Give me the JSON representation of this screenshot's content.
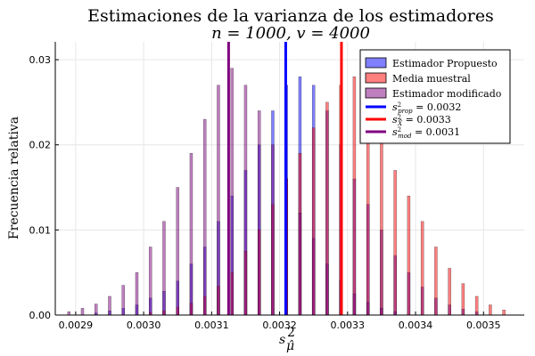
{
  "chart_data": {
    "type": "bar",
    "title": "Estimaciones de la varianza de los estimadores",
    "subtitle": "n = 1000, v = 4000",
    "xlabel": "s²_μ̂",
    "ylabel": "Frecuencia relativa",
    "xlim": [
      0.00287,
      0.00356
    ],
    "ylim": [
      0,
      0.0321
    ],
    "xticks": [
      0.0029,
      0.003,
      0.0031,
      0.0032,
      0.0033,
      0.0034,
      0.0035
    ],
    "xtick_labels": [
      "0.0029",
      "0.0030",
      "0.0031",
      "0.0032",
      "0.0033",
      "0.0034",
      "0.0035"
    ],
    "yticks": [
      0,
      0.01,
      0.02,
      0.03
    ],
    "ytick_labels": [
      "0.00",
      "0.01",
      "0.02",
      "0.03"
    ],
    "grid": true,
    "legend_position": "top-right",
    "bin_width": 4e-06,
    "series": [
      {
        "name": "Estimador Propuesto",
        "color": "#0000ff",
        "opacity": 0.5,
        "bins": [
          [
            0.00293,
            0.00025
          ],
          [
            0.00295,
            0.0005
          ],
          [
            0.00297,
            0.0008
          ],
          [
            0.00299,
            0.0012
          ],
          [
            0.00301,
            0.002
          ],
          [
            0.00303,
            0.0028
          ],
          [
            0.00305,
            0.004
          ],
          [
            0.00307,
            0.006
          ],
          [
            0.00309,
            0.008
          ],
          [
            0.00311,
            0.011
          ],
          [
            0.00313,
            0.014
          ],
          [
            0.00315,
            0.017
          ],
          [
            0.00317,
            0.02
          ],
          [
            0.00319,
            0.024
          ],
          [
            0.00321,
            0.027
          ],
          [
            0.00323,
            0.028
          ],
          [
            0.00325,
            0.027
          ],
          [
            0.00327,
            0.024
          ],
          [
            0.00329,
            0.02
          ],
          [
            0.00331,
            0.016
          ],
          [
            0.00333,
            0.013
          ],
          [
            0.00335,
            0.01
          ],
          [
            0.00337,
            0.007
          ],
          [
            0.00339,
            0.005
          ],
          [
            0.00341,
            0.0033
          ],
          [
            0.00343,
            0.002
          ],
          [
            0.00345,
            0.0012
          ],
          [
            0.00347,
            0.0007
          ],
          [
            0.00349,
            0.0004
          ]
        ]
      },
      {
        "name": "Media muestral",
        "color": "#ff0000",
        "opacity": 0.5,
        "bins": [
          [
            0.00301,
            0.0003
          ],
          [
            0.00303,
            0.0005
          ],
          [
            0.00305,
            0.0009
          ],
          [
            0.00307,
            0.0014
          ],
          [
            0.00309,
            0.0022
          ],
          [
            0.00311,
            0.0034
          ],
          [
            0.00313,
            0.005
          ],
          [
            0.00315,
            0.0075
          ],
          [
            0.00317,
            0.01
          ],
          [
            0.00319,
            0.013
          ],
          [
            0.00321,
            0.016
          ],
          [
            0.00323,
            0.019
          ],
          [
            0.00325,
            0.022
          ],
          [
            0.00327,
            0.025
          ],
          [
            0.00329,
            0.027
          ],
          [
            0.00331,
            0.028
          ],
          [
            0.00333,
            0.025
          ],
          [
            0.00335,
            0.021
          ],
          [
            0.00337,
            0.017
          ],
          [
            0.00339,
            0.014
          ],
          [
            0.00341,
            0.011
          ],
          [
            0.00343,
            0.008
          ],
          [
            0.00345,
            0.0055
          ],
          [
            0.00347,
            0.0037
          ],
          [
            0.00349,
            0.0022
          ],
          [
            0.00351,
            0.0012
          ],
          [
            0.00353,
            0.0006
          ]
        ]
      },
      {
        "name": "Estimador modificado",
        "color": "#800080",
        "opacity": 0.5,
        "bins": [
          [
            0.00289,
            0.0004
          ],
          [
            0.00291,
            0.0008
          ],
          [
            0.00293,
            0.0013
          ],
          [
            0.00295,
            0.0022
          ],
          [
            0.00297,
            0.0035
          ],
          [
            0.00299,
            0.005
          ],
          [
            0.00301,
            0.008
          ],
          [
            0.00303,
            0.011
          ],
          [
            0.00305,
            0.015
          ],
          [
            0.00307,
            0.019
          ],
          [
            0.00309,
            0.023
          ],
          [
            0.00311,
            0.027
          ],
          [
            0.00313,
            0.029
          ],
          [
            0.00315,
            0.027
          ],
          [
            0.00317,
            0.024
          ],
          [
            0.00319,
            0.02
          ],
          [
            0.00321,
            0.016
          ],
          [
            0.00323,
            0.012
          ],
          [
            0.00325,
            0.009
          ],
          [
            0.00327,
            0.006
          ],
          [
            0.00329,
            0.004
          ],
          [
            0.00331,
            0.0025
          ],
          [
            0.00333,
            0.0015
          ],
          [
            0.00335,
            0.0008
          ],
          [
            0.00337,
            0.0004
          ]
        ]
      }
    ],
    "vlines": [
      {
        "name": "s²_prop = 0.0032",
        "label_main": "s",
        "label_sup": "2",
        "label_sub": "prop",
        "label_value": " = 0.0032",
        "x": 0.003209,
        "color": "#0000ff"
      },
      {
        "name": "s²_X̄ = 0.0033",
        "label_main": "s",
        "label_sup": "2",
        "label_sub": "X̄",
        "label_value": " = 0.0033",
        "x": 0.003291,
        "color": "#ff0000"
      },
      {
        "name": "s²_mod = 0.0031",
        "label_main": "s",
        "label_sup": "2",
        "label_sub": "mod",
        "label_value": " = 0.0031",
        "x": 0.003125,
        "color": "#800080"
      }
    ]
  }
}
